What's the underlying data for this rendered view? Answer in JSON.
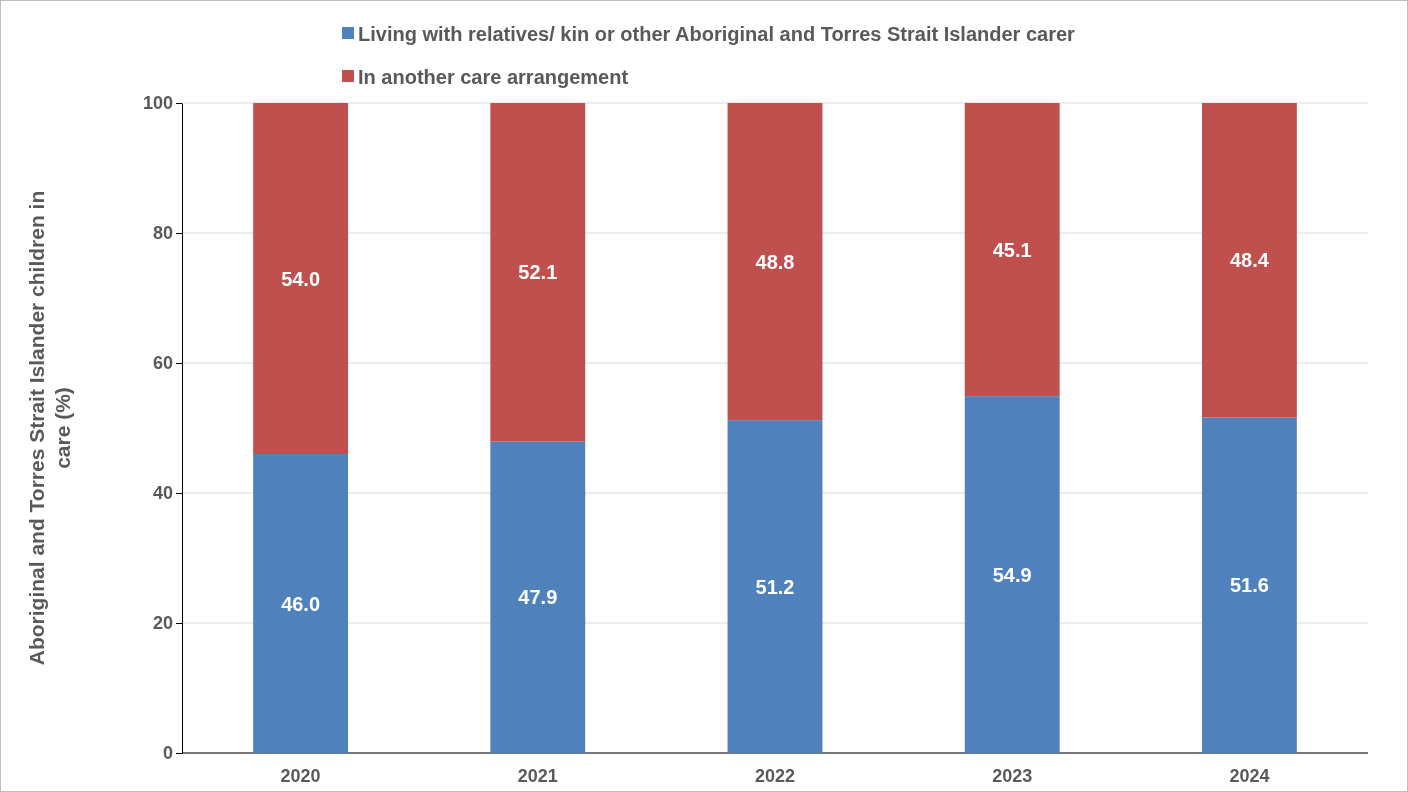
{
  "chart_data": {
    "type": "bar",
    "stacked": true,
    "ylabel": "Aboriginal and Torres Strait Islander children in care (%)",
    "categories": [
      "2020",
      "2021",
      "2022",
      "2023",
      "2024"
    ],
    "series": [
      {
        "name": "Living with relatives/ kin or other Aboriginal and Torres Strait Islander carer",
        "color": "#4f81bd",
        "values": [
          46.0,
          47.9,
          51.2,
          54.9,
          51.6
        ],
        "value_labels": [
          "46.0",
          "47.9",
          "51.2",
          "54.9",
          "51.6"
        ]
      },
      {
        "name": "In another care arrangement",
        "color": "#c0504d",
        "values": [
          54.0,
          52.1,
          48.8,
          45.1,
          48.4
        ],
        "value_labels": [
          "54.0",
          "52.1",
          "48.8",
          "45.1",
          "48.4"
        ]
      }
    ],
    "ylim": [
      0,
      100
    ],
    "yticks": [
      0,
      20,
      40,
      60,
      80,
      100
    ],
    "grid": "y",
    "legend": "top"
  }
}
